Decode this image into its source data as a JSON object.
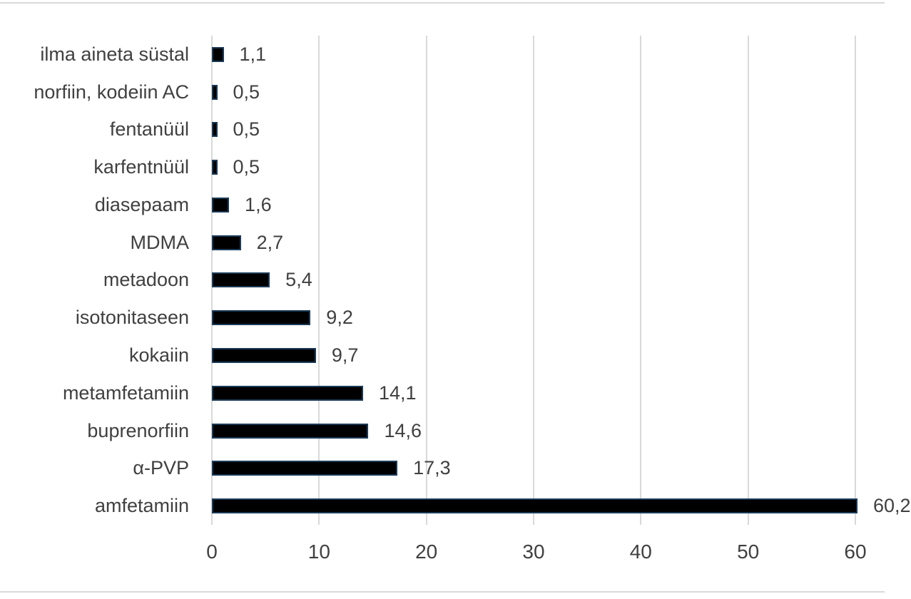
{
  "chart_data": {
    "type": "bar",
    "orientation": "horizontal",
    "title": "",
    "xlabel": "",
    "ylabel": "",
    "legend": "none",
    "grid": "vertical",
    "categories": [
      "ilma aineta süstal",
      "norfiin, kodeiin AC",
      "fentanüül",
      "karfentnüül",
      "diasepaam",
      "MDMA",
      "metadoon",
      "isotonitaseen",
      "kokaiin",
      "metamfetamiin",
      "buprenorfiin",
      "α-PVP",
      "amfetamiin"
    ],
    "values": [
      1.1,
      0.5,
      0.5,
      0.5,
      1.6,
      2.7,
      5.4,
      9.2,
      9.7,
      14.1,
      14.6,
      17.3,
      60.2
    ],
    "data_labels": [
      "1,1",
      "0,5",
      "0,5",
      "0,5",
      "1,6",
      "2,7",
      "5,4",
      "9,2",
      "9,7",
      "14,1",
      "14,6",
      "17,3",
      "60,2"
    ],
    "x_ticks": [
      0,
      10,
      20,
      30,
      40,
      50,
      60
    ],
    "x_tick_labels": [
      "0",
      "10",
      "20",
      "30",
      "40",
      "50",
      "60"
    ],
    "xlim": [
      0,
      62.7
    ],
    "colors": {
      "bar_fill": "#000000",
      "bar_border": "#1b3a57",
      "text": "#404040",
      "gridline": "#d9d9d9",
      "frame": "#d9d9d9"
    }
  }
}
